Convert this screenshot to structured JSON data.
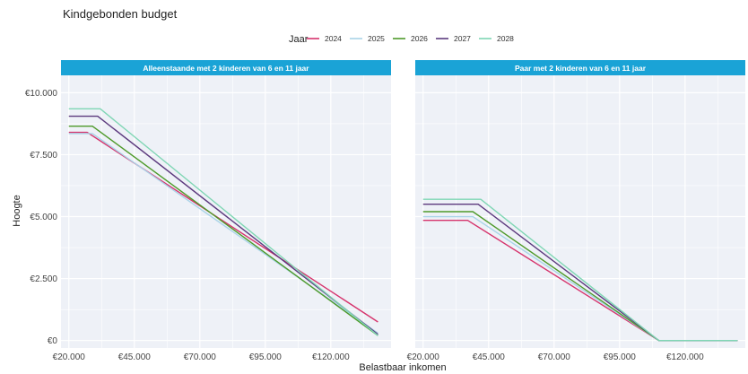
{
  "chart_data": {
    "type": "line",
    "title": "Kindgebonden budget",
    "xlabel": "Belastbaar inkomen",
    "ylabel": "Hoogte",
    "legend_title": "Jaar",
    "legend_position": "top",
    "grid": true,
    "xlim": [
      17000,
      143000
    ],
    "ylim": [
      -300,
      10700
    ],
    "x_ticks": [
      20000,
      45000,
      70000,
      95000,
      120000
    ],
    "x_tick_labels": [
      "€20.000",
      "€45.000",
      "€70.000",
      "€95.000",
      "€120.000"
    ],
    "y_ticks": [
      0,
      2500,
      5000,
      7500,
      10000
    ],
    "y_tick_labels": [
      "€0",
      "€2.500",
      "€5.000",
      "€7.500",
      "€10.000"
    ],
    "colors": {
      "2024": "#d6336c",
      "2025": "#a9d4e8",
      "2026": "#4e9a2a",
      "2027": "#5c3a7e",
      "2028": "#7fd6b4"
    },
    "legend": [
      "2024",
      "2025",
      "2026",
      "2027",
      "2028"
    ],
    "panels": [
      {
        "strip": "Alleenstaande met 2 kinderen van 6 en 11 jaar",
        "series": [
          {
            "name": "2024",
            "points": [
              [
                20000,
                8400
              ],
              [
                27000,
                8400
              ],
              [
                138000,
                750
              ]
            ]
          },
          {
            "name": "2025",
            "points": [
              [
                20000,
                8350
              ],
              [
                29000,
                8350
              ],
              [
                138000,
                300
              ]
            ]
          },
          {
            "name": "2026",
            "points": [
              [
                20000,
                8650
              ],
              [
                29000,
                8650
              ],
              [
                138000,
                200
              ]
            ]
          },
          {
            "name": "2027",
            "points": [
              [
                20000,
                9050
              ],
              [
                31000,
                9050
              ],
              [
                138000,
                250
              ]
            ]
          },
          {
            "name": "2028",
            "points": [
              [
                20000,
                9350
              ],
              [
                32000,
                9350
              ],
              [
                138000,
                200
              ]
            ]
          }
        ]
      },
      {
        "strip": "Paar met 2 kinderen van 6 en 11 jaar",
        "series": [
          {
            "name": "2024",
            "points": [
              [
                20000,
                4850
              ],
              [
                37000,
                4850
              ],
              [
                110000,
                0
              ],
              [
                140000,
                0
              ]
            ]
          },
          {
            "name": "2025",
            "points": [
              [
                20000,
                5000
              ],
              [
                39000,
                5000
              ],
              [
                110000,
                0
              ],
              [
                140000,
                0
              ]
            ]
          },
          {
            "name": "2026",
            "points": [
              [
                20000,
                5200
              ],
              [
                39000,
                5200
              ],
              [
                110000,
                0
              ],
              [
                140000,
                0
              ]
            ]
          },
          {
            "name": "2027",
            "points": [
              [
                20000,
                5500
              ],
              [
                41000,
                5500
              ],
              [
                110000,
                0
              ],
              [
                140000,
                0
              ]
            ]
          },
          {
            "name": "2028",
            "points": [
              [
                20000,
                5700
              ],
              [
                42000,
                5700
              ],
              [
                110000,
                0
              ],
              [
                140000,
                0
              ]
            ]
          }
        ]
      }
    ]
  }
}
